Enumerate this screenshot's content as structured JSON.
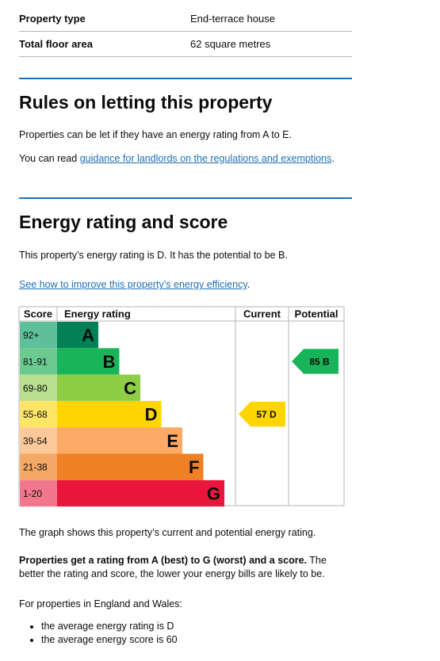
{
  "summary": [
    {
      "label": "Property type",
      "value": "End-terrace house"
    },
    {
      "label": "Total floor area",
      "value": "62 square metres"
    }
  ],
  "letting": {
    "heading": "Rules on letting this property",
    "para1": "Properties can be let if they have an energy rating from A to E.",
    "para2_prefix": "You can read ",
    "para2_link": "guidance for landlords on the regulations and exemptions",
    "para2_suffix": "."
  },
  "energy": {
    "heading": "Energy rating and score",
    "para1": "This property’s energy rating is D. It has the potential to be B.",
    "link": "See how to improve this property’s energy efficiency",
    "link_suffix": "."
  },
  "chart_data": {
    "type": "bar",
    "headers": {
      "score": "Score",
      "rating": "Energy rating",
      "current": "Current",
      "potential": "Potential"
    },
    "bands": [
      {
        "score": "92+",
        "letter": "A",
        "color": "#008054",
        "score_bg": "#5ec09a"
      },
      {
        "score": "81-91",
        "letter": "B",
        "color": "#19b459",
        "score_bg": "#6cc98f"
      },
      {
        "score": "69-80",
        "letter": "C",
        "color": "#8dce46",
        "score_bg": "#b8de8e"
      },
      {
        "score": "55-68",
        "letter": "D",
        "color": "#ffd500",
        "score_bg": "#ffe566"
      },
      {
        "score": "39-54",
        "letter": "E",
        "color": "#fcaa65",
        "score_bg": "#fdc99a"
      },
      {
        "score": "21-38",
        "letter": "F",
        "color": "#ef8023",
        "score_bg": "#f4a865"
      },
      {
        "score": "1-20",
        "letter": "G",
        "color": "#e9153b",
        "score_bg": "#f1778c"
      }
    ],
    "current": {
      "score": 57,
      "letter": "D",
      "label": "57 D",
      "color": "#ffd500"
    },
    "potential": {
      "score": 85,
      "letter": "B",
      "label": "85 B",
      "color": "#19b459"
    }
  },
  "after_chart": {
    "graph_note": "The graph shows this property’s current and potential energy rating.",
    "bold": "Properties get a rating from A (best) to G (worst) and a score.",
    "rest": " The better the rating and score, the lower your energy bills are likely to be.",
    "england": "For properties in England and Wales:",
    "bullets": [
      "the average energy rating is D",
      "the average energy score is 60"
    ]
  }
}
